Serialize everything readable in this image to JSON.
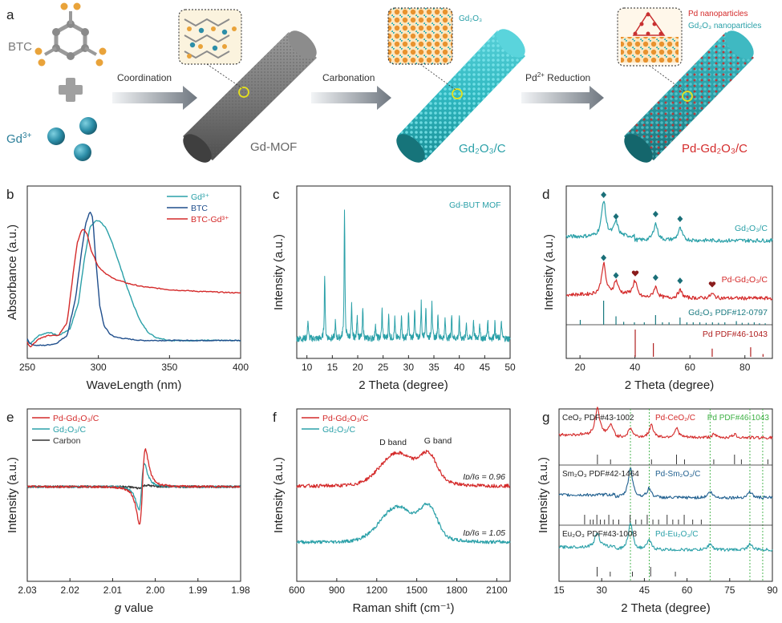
{
  "panel_a": {
    "letter": "a",
    "btc_label": "BTC",
    "gd_label": "Gd",
    "gd_sup": "3+",
    "arrow1": "Coordination",
    "arrow2": "Carbonation",
    "arrow3_pre": "Pd",
    "arrow3_sup": "2+",
    "arrow3_post": " Reduction",
    "rod1": "Gd-MOF",
    "rod2": "Gd₂O₃/C",
    "rod3": "Pd-Gd₂O₃/C",
    "inset2": "Gd₂O₃",
    "inset3a": "Pd nanoparticles",
    "inset3b": "Gd₂O₃ nanoparticles"
  },
  "colors": {
    "teal": "#2aa0a8",
    "navy": "#1f4e8c",
    "red": "#d42a2a",
    "black": "#333333",
    "green": "#3cb043"
  },
  "chart_data": [
    {
      "panel": "b",
      "type": "line",
      "xlabel": "WaveLength (nm)",
      "ylabel": "Absorbance (a.u.)",
      "xlim": [
        250,
        400
      ],
      "xticks": [
        250,
        300,
        350,
        400
      ],
      "series": [
        {
          "name": "Gd³⁺",
          "color": "#2aa0a8",
          "x": [
            250,
            252,
            258,
            265,
            272,
            280,
            286,
            290,
            294,
            298,
            301,
            305,
            310,
            315,
            320,
            325,
            330,
            335,
            340,
            345,
            350,
            360,
            380,
            400
          ],
          "y": [
            0.09,
            0.07,
            0.12,
            0.14,
            0.12,
            0.16,
            0.32,
            0.58,
            0.78,
            0.82,
            0.82,
            0.78,
            0.68,
            0.55,
            0.42,
            0.3,
            0.2,
            0.14,
            0.11,
            0.1,
            0.09,
            0.09,
            0.09,
            0.09
          ]
        },
        {
          "name": "BTC",
          "color": "#1f4e8c",
          "x": [
            250,
            252,
            256,
            262,
            270,
            278,
            284,
            288,
            291,
            294,
            296,
            298,
            301,
            304,
            308,
            312,
            320,
            330,
            350,
            400
          ],
          "y": [
            0.1,
            0.07,
            0.06,
            0.06,
            0.07,
            0.12,
            0.35,
            0.62,
            0.8,
            0.88,
            0.84,
            0.6,
            0.3,
            0.18,
            0.13,
            0.11,
            0.1,
            0.09,
            0.09,
            0.09
          ]
        },
        {
          "name": "BTC-Gd³⁺",
          "color": "#d42a2a",
          "x": [
            250,
            252,
            258,
            265,
            272,
            278,
            282,
            285,
            288,
            290,
            292,
            295,
            300,
            305,
            310,
            320,
            330,
            350,
            370,
            400
          ],
          "y": [
            0.08,
            0.05,
            0.1,
            0.12,
            0.12,
            0.2,
            0.48,
            0.68,
            0.76,
            0.77,
            0.74,
            0.64,
            0.54,
            0.5,
            0.47,
            0.44,
            0.42,
            0.4,
            0.39,
            0.38
          ]
        }
      ]
    },
    {
      "panel": "c",
      "type": "line",
      "xlabel": "2 Theta (degree)",
      "ylabel": "Intensity (a.u.)",
      "xlim": [
        8,
        50
      ],
      "xticks": [
        10,
        15,
        20,
        25,
        30,
        35,
        40,
        45,
        50
      ],
      "annotation": "Gd-BUT MOF",
      "series": [
        {
          "name": "Gd-BUT MOF",
          "color": "#2aa0a8",
          "peaks": [
            [
              10.2,
              0.12
            ],
            [
              13.5,
              0.4
            ],
            [
              15.6,
              0.1
            ],
            [
              17.4,
              0.8
            ],
            [
              18.8,
              0.2
            ],
            [
              19.9,
              0.15
            ],
            [
              21.0,
              0.18
            ],
            [
              23.5,
              0.1
            ],
            [
              24.8,
              0.18
            ],
            [
              26.1,
              0.14
            ],
            [
              27.3,
              0.12
            ],
            [
              28.6,
              0.15
            ],
            [
              30.0,
              0.16
            ],
            [
              31.2,
              0.18
            ],
            [
              32.5,
              0.22
            ],
            [
              33.4,
              0.2
            ],
            [
              34.6,
              0.24
            ],
            [
              35.8,
              0.16
            ],
            [
              37.2,
              0.12
            ],
            [
              38.5,
              0.14
            ],
            [
              40.0,
              0.12
            ],
            [
              41.4,
              0.1
            ],
            [
              42.8,
              0.12
            ],
            [
              44.0,
              0.1
            ],
            [
              45.6,
              0.12
            ],
            [
              47.0,
              0.1
            ],
            [
              48.3,
              0.11
            ]
          ]
        }
      ]
    },
    {
      "panel": "d",
      "type": "line",
      "xlabel": "2 Theta (degree)",
      "ylabel": "Intensity (a.u.)",
      "xlim": [
        15,
        90
      ],
      "xticks": [
        20,
        40,
        60,
        80
      ],
      "series": [
        {
          "name": "Gd₂O₃/C",
          "color": "#2aa0a8",
          "peaks": [
            [
              28.6,
              0.75
            ],
            [
              33.1,
              0.3
            ],
            [
              47.5,
              0.35
            ],
            [
              56.4,
              0.25
            ]
          ]
        },
        {
          "name": "Pd-Gd₂O₃/C",
          "color": "#d42a2a",
          "peaks": [
            [
              28.6,
              0.7
            ],
            [
              33.1,
              0.3
            ],
            [
              40.1,
              0.35
            ],
            [
              47.5,
              0.25
            ],
            [
              56.4,
              0.18
            ],
            [
              68.1,
              0.1
            ]
          ]
        }
      ],
      "references": [
        {
          "name": "Gd₂O₃ PDF#12-0797",
          "color": "#1a7a80",
          "lines": [
            [
              20.1,
              0.2
            ],
            [
              28.6,
              1.0
            ],
            [
              33.1,
              0.35
            ],
            [
              35.9,
              0.12
            ],
            [
              39.8,
              0.1
            ],
            [
              43.4,
              0.1
            ],
            [
              47.5,
              0.4
            ],
            [
              50.0,
              0.1
            ],
            [
              52.4,
              0.1
            ],
            [
              56.4,
              0.3
            ],
            [
              58.9,
              0.1
            ],
            [
              61.2,
              0.1
            ],
            [
              63.6,
              0.1
            ],
            [
              65.9,
              0.08
            ],
            [
              68.2,
              0.1
            ],
            [
              70.4,
              0.08
            ],
            [
              72.7,
              0.1
            ],
            [
              76.9,
              0.15
            ],
            [
              79.0,
              0.08
            ],
            [
              81.3,
              0.08
            ],
            [
              83.4,
              0.1
            ],
            [
              85.3,
              0.06
            ],
            [
              87.4,
              0.06
            ]
          ]
        },
        {
          "name": "Pd PDF#46-1043",
          "color": "#b02020",
          "lines": [
            [
              40.1,
              1.0
            ],
            [
              46.7,
              0.5
            ],
            [
              68.1,
              0.3
            ],
            [
              82.1,
              0.35
            ],
            [
              86.6,
              0.1
            ]
          ]
        }
      ]
    },
    {
      "panel": "e",
      "type": "line",
      "xlabel": "g value",
      "ylabel": "Intensity (a.u.)",
      "xlim": [
        2.03,
        1.98
      ],
      "xticks": [
        2.03,
        2.02,
        2.01,
        2.0,
        1.99,
        1.98
      ],
      "xticklabels": [
        "2.03",
        "2.02",
        "2.01",
        "2.00",
        "1.99",
        "1.98"
      ],
      "series": [
        {
          "name": "Pd-Gd₂O₃/C",
          "color": "#d42a2a",
          "center": 2.003,
          "amp": 1.0,
          "width": 0.0012
        },
        {
          "name": "Gd₂O₃/C",
          "color": "#2aa0a8",
          "center": 2.0032,
          "amp": 0.62,
          "width": 0.0011
        },
        {
          "name": "Carbon",
          "color": "#333333",
          "center": 2.003,
          "amp": 0.04,
          "width": 0.0016
        }
      ]
    },
    {
      "panel": "f",
      "type": "line",
      "xlabel": "Raman shift (cm⁻¹)",
      "ylabel": "Intensity (a.u.)",
      "xlim": [
        600,
        2200
      ],
      "xticks": [
        600,
        900,
        1200,
        1500,
        1800,
        2100
      ],
      "bands": [
        "D band",
        "G band"
      ],
      "series": [
        {
          "name": "Pd-Gd₂O₃/C",
          "color": "#d42a2a",
          "ratio": "Iᴅ/Iɢ = 0.96"
        },
        {
          "name": "Gd₂O₃/C",
          "color": "#2aa0a8",
          "ratio": "Iᴅ/Iɢ = 1.05"
        }
      ]
    },
    {
      "panel": "g",
      "type": "line",
      "xlabel": "2 Theta (degree)",
      "ylabel": "Intensity (a.u.)",
      "xlim": [
        15,
        90
      ],
      "xticks": [
        15,
        30,
        45,
        60,
        75,
        90
      ],
      "pd_ref": "Pd PDF#46-1043",
      "pd_lines": [
        40.1,
        46.7,
        68.1,
        82.1,
        86.6
      ],
      "series": [
        {
          "name": "Pd-CeO₂/C",
          "ref": "CeO₂ PDF#43-1002",
          "color": "#d42a2a",
          "peaks": [
            [
              28.5,
              0.9
            ],
            [
              33.1,
              0.3
            ],
            [
              40.1,
              0.3
            ],
            [
              47.5,
              0.4
            ],
            [
              56.3,
              0.3
            ],
            [
              69.4,
              0.1
            ],
            [
              76.7,
              0.1
            ]
          ],
          "ref_lines": [
            28.5,
            33.1,
            47.5,
            56.3,
            59.1,
            69.4,
            76.7,
            79.1,
            88.4
          ]
        },
        {
          "name": "Pd-Sm₂O₃/C",
          "ref": "Sm₂O₃ PDF#42-1464",
          "color": "#1f5f8f",
          "peaks": [
            [
              40.1,
              1.0
            ],
            [
              46.7,
              0.3
            ],
            [
              68.1,
              0.2
            ],
            [
              82.1,
              0.2
            ]
          ],
          "ref_lines": [
            24,
            26,
            27,
            28.3,
            29.5,
            31,
            32.5,
            34,
            36,
            40,
            42,
            44,
            46,
            48,
            50,
            53,
            55,
            57,
            59,
            62,
            65
          ]
        },
        {
          "name": "Pd-Eu₂O₃/C",
          "ref": "Eu₂O₃ PDF#43-1008",
          "color": "#2aa0a8",
          "peaks": [
            [
              28.4,
              0.5
            ],
            [
              40.1,
              0.9
            ],
            [
              46.7,
              0.3
            ],
            [
              68.1,
              0.2
            ],
            [
              82.1,
              0.2
            ]
          ],
          "ref_lines": [
            28.4,
            33,
            40.8,
            47.2,
            55.9
          ]
        }
      ]
    }
  ]
}
